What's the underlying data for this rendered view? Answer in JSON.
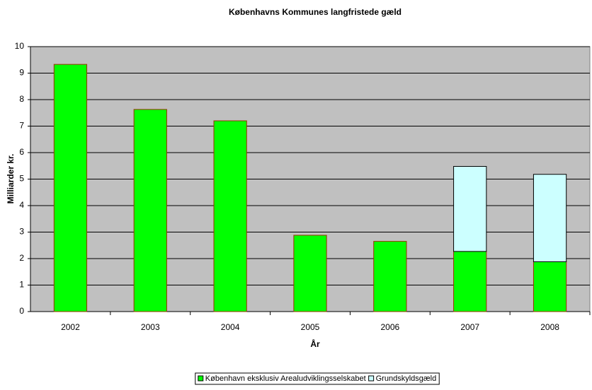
{
  "chart_data": {
    "type": "stacked-bar",
    "title": "Københavns Kommunes langfristede gæld",
    "x_label": "År",
    "y_label": "Milliarder kr.",
    "categories": [
      "2002",
      "2003",
      "2004",
      "2005",
      "2006",
      "2007",
      "2008"
    ],
    "series": [
      {
        "name": "København eksklusiv Arealudviklingsselskabet",
        "color": "#00ff00",
        "values": [
          9.33,
          7.63,
          7.2,
          2.88,
          2.65,
          2.27,
          1.88
        ]
      },
      {
        "name": "Grundskyldsgæld",
        "color": "#ccffff",
        "values": [
          null,
          null,
          null,
          null,
          null,
          3.21,
          3.3
        ]
      }
    ],
    "ylim": [
      0,
      10
    ],
    "yticks": [
      0,
      1,
      2,
      3,
      4,
      5,
      6,
      7,
      8,
      9,
      10
    ],
    "grid": true,
    "legend": "bottom"
  }
}
